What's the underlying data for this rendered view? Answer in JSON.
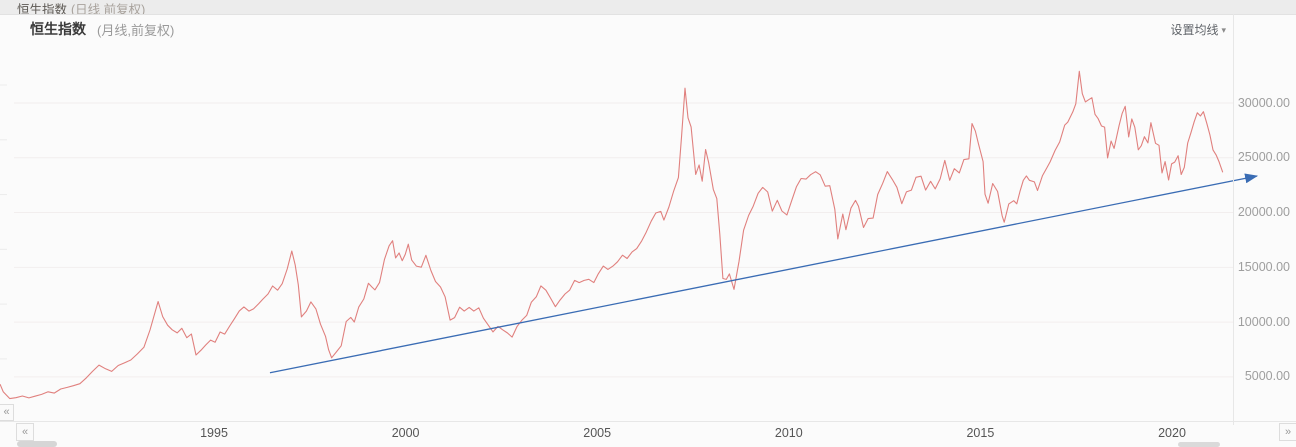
{
  "window": {
    "tab_title": "恒生指数",
    "tab_subtitle": "(日线 前复权)"
  },
  "header": {
    "title": "恒生指数",
    "subtitle": "(月线,前复权)",
    "ma_settings_label": "设置均线",
    "caret_icon": "▾"
  },
  "nav": {
    "collapse_icon": "«",
    "pan_left_icon": "«",
    "pan_right_icon": "»"
  },
  "colors": {
    "price_line": "#e0807e",
    "trend_line": "#3a6cb4",
    "grid": "#f2eeee",
    "minor_tick": "#ececec",
    "axis_text": "#9e9e9e"
  },
  "chart_data": {
    "type": "line",
    "title": "恒生指数 (月线,前复权)",
    "xlabel": "",
    "ylabel": "",
    "legend": "none",
    "grid": "horizontal-only",
    "x_unit": "year",
    "xlim": [
      1989.9,
      2022.8
    ],
    "ylim": [
      2300,
      33600
    ],
    "x_ticks": [
      1995,
      2000,
      2005,
      2010,
      2015,
      2020
    ],
    "x_tick_labels": [
      "1995",
      "2000",
      "2005",
      "2010",
      "2015",
      "2020"
    ],
    "y_ticks": [
      30000,
      25000,
      20000,
      15000,
      10000,
      5000
    ],
    "y_tick_labels": [
      "30000.00",
      "25000.00",
      "20000.00",
      "15000.00",
      "10000.00",
      "5000.00"
    ],
    "annotations": [
      {
        "type": "trendline-arrow",
        "from": {
          "x": 1996.96,
          "value": 5380
        },
        "to": {
          "x": 2022.72,
          "value": 23340
        }
      }
    ],
    "series": [
      {
        "name": "恒生指数",
        "points": [
          [
            1989.92,
            4300
          ],
          [
            1990.0,
            3650
          ],
          [
            1990.17,
            3020
          ],
          [
            1990.33,
            3100
          ],
          [
            1990.5,
            3260
          ],
          [
            1990.67,
            3080
          ],
          [
            1990.83,
            3240
          ],
          [
            1991.0,
            3400
          ],
          [
            1991.17,
            3640
          ],
          [
            1991.33,
            3520
          ],
          [
            1991.5,
            3900
          ],
          [
            1991.67,
            4040
          ],
          [
            1991.83,
            4200
          ],
          [
            1992.0,
            4380
          ],
          [
            1992.17,
            4920
          ],
          [
            1992.33,
            5500
          ],
          [
            1992.5,
            6080
          ],
          [
            1992.67,
            5740
          ],
          [
            1992.83,
            5500
          ],
          [
            1993.0,
            6040
          ],
          [
            1993.17,
            6300
          ],
          [
            1993.33,
            6540
          ],
          [
            1993.5,
            7100
          ],
          [
            1993.67,
            7700
          ],
          [
            1993.83,
            9280
          ],
          [
            1994.04,
            11880
          ],
          [
            1994.16,
            10500
          ],
          [
            1994.29,
            9720
          ],
          [
            1994.41,
            9300
          ],
          [
            1994.54,
            9020
          ],
          [
            1994.66,
            9440
          ],
          [
            1994.79,
            8580
          ],
          [
            1994.91,
            8920
          ],
          [
            1995.03,
            7000
          ],
          [
            1995.16,
            7440
          ],
          [
            1995.28,
            7900
          ],
          [
            1995.41,
            8360
          ],
          [
            1995.53,
            8160
          ],
          [
            1995.66,
            9100
          ],
          [
            1995.78,
            8910
          ],
          [
            1995.91,
            9650
          ],
          [
            1996.03,
            10290
          ],
          [
            1996.16,
            11020
          ],
          [
            1996.28,
            11390
          ],
          [
            1996.41,
            11010
          ],
          [
            1996.53,
            11210
          ],
          [
            1996.66,
            11660
          ],
          [
            1996.78,
            12110
          ],
          [
            1996.91,
            12570
          ],
          [
            1997.03,
            13300
          ],
          [
            1997.16,
            12910
          ],
          [
            1997.28,
            13510
          ],
          [
            1997.41,
            14850
          ],
          [
            1997.53,
            16490
          ],
          [
            1997.62,
            15210
          ],
          [
            1997.7,
            13410
          ],
          [
            1997.78,
            10480
          ],
          [
            1997.91,
            11010
          ],
          [
            1998.03,
            11850
          ],
          [
            1998.16,
            11210
          ],
          [
            1998.28,
            9810
          ],
          [
            1998.41,
            8710
          ],
          [
            1998.49,
            7480
          ],
          [
            1998.57,
            6740
          ],
          [
            1998.7,
            7310
          ],
          [
            1998.82,
            7840
          ],
          [
            1998.95,
            10060
          ],
          [
            1999.07,
            10430
          ],
          [
            1999.16,
            10010
          ],
          [
            1999.28,
            11390
          ],
          [
            1999.41,
            12110
          ],
          [
            1999.53,
            13540
          ],
          [
            1999.62,
            13210
          ],
          [
            1999.7,
            12940
          ],
          [
            1999.82,
            13610
          ],
          [
            1999.95,
            15730
          ],
          [
            2000.07,
            16970
          ],
          [
            2000.16,
            17430
          ],
          [
            2000.24,
            15860
          ],
          [
            2000.33,
            16310
          ],
          [
            2000.41,
            15610
          ],
          [
            2000.49,
            16170
          ],
          [
            2000.57,
            17110
          ],
          [
            2000.66,
            15660
          ],
          [
            2000.78,
            15110
          ],
          [
            2000.91,
            15010
          ],
          [
            2001.03,
            16100
          ],
          [
            2001.16,
            14710
          ],
          [
            2001.28,
            13710
          ],
          [
            2001.41,
            13210
          ],
          [
            2001.53,
            12310
          ],
          [
            2001.66,
            10180
          ],
          [
            2001.78,
            10410
          ],
          [
            2001.91,
            11360
          ],
          [
            2002.03,
            11010
          ],
          [
            2002.16,
            11340
          ],
          [
            2002.28,
            11010
          ],
          [
            2002.41,
            11310
          ],
          [
            2002.53,
            10360
          ],
          [
            2002.66,
            9710
          ],
          [
            2002.78,
            9110
          ],
          [
            2002.91,
            9610
          ],
          [
            2003.03,
            9310
          ],
          [
            2003.16,
            9010
          ],
          [
            2003.28,
            8630
          ],
          [
            2003.41,
            9610
          ],
          [
            2003.53,
            10160
          ],
          [
            2003.66,
            10610
          ],
          [
            2003.78,
            11810
          ],
          [
            2003.91,
            12310
          ],
          [
            2004.03,
            13310
          ],
          [
            2004.16,
            12910
          ],
          [
            2004.28,
            12210
          ],
          [
            2004.41,
            11410
          ],
          [
            2004.53,
            12010
          ],
          [
            2004.66,
            12570
          ],
          [
            2004.78,
            12910
          ],
          [
            2004.91,
            13810
          ],
          [
            2005.03,
            13610
          ],
          [
            2005.16,
            13810
          ],
          [
            2005.28,
            13910
          ],
          [
            2005.41,
            13610
          ],
          [
            2005.53,
            14410
          ],
          [
            2005.66,
            15110
          ],
          [
            2005.78,
            14810
          ],
          [
            2005.91,
            15110
          ],
          [
            2006.03,
            15510
          ],
          [
            2006.16,
            16110
          ],
          [
            2006.28,
            15810
          ],
          [
            2006.41,
            16410
          ],
          [
            2006.53,
            16710
          ],
          [
            2006.66,
            17410
          ],
          [
            2006.78,
            18210
          ],
          [
            2006.91,
            19210
          ],
          [
            2007.03,
            19960
          ],
          [
            2007.16,
            20110
          ],
          [
            2007.24,
            19310
          ],
          [
            2007.37,
            20510
          ],
          [
            2007.49,
            21910
          ],
          [
            2007.62,
            23190
          ],
          [
            2007.7,
            26880
          ],
          [
            2007.79,
            31350
          ],
          [
            2007.87,
            28650
          ],
          [
            2007.95,
            27820
          ],
          [
            2008.07,
            23470
          ],
          [
            2008.16,
            24340
          ],
          [
            2008.24,
            22860
          ],
          [
            2008.33,
            25760
          ],
          [
            2008.41,
            24540
          ],
          [
            2008.53,
            22110
          ],
          [
            2008.62,
            21270
          ],
          [
            2008.7,
            18030
          ],
          [
            2008.78,
            13980
          ],
          [
            2008.87,
            13900
          ],
          [
            2008.95,
            14400
          ],
          [
            2009.07,
            12990
          ],
          [
            2009.2,
            15530
          ],
          [
            2009.32,
            18390
          ],
          [
            2009.45,
            19730
          ],
          [
            2009.57,
            20580
          ],
          [
            2009.7,
            21760
          ],
          [
            2009.82,
            22300
          ],
          [
            2009.95,
            21880
          ],
          [
            2010.07,
            20130
          ],
          [
            2010.2,
            21120
          ],
          [
            2010.32,
            20140
          ],
          [
            2010.45,
            19780
          ],
          [
            2010.57,
            21040
          ],
          [
            2010.7,
            22370
          ],
          [
            2010.82,
            23110
          ],
          [
            2010.95,
            23050
          ],
          [
            2011.07,
            23460
          ],
          [
            2011.2,
            23730
          ],
          [
            2011.32,
            23450
          ],
          [
            2011.45,
            22410
          ],
          [
            2011.57,
            22450
          ],
          [
            2011.7,
            20310
          ],
          [
            2011.78,
            17600
          ],
          [
            2011.91,
            19870
          ],
          [
            2011.99,
            18440
          ],
          [
            2012.12,
            20400
          ],
          [
            2012.24,
            21110
          ],
          [
            2012.32,
            20570
          ],
          [
            2012.45,
            18640
          ],
          [
            2012.57,
            19450
          ],
          [
            2012.7,
            19490
          ],
          [
            2012.82,
            21650
          ],
          [
            2012.95,
            22670
          ],
          [
            2013.07,
            23740
          ],
          [
            2013.2,
            23030
          ],
          [
            2013.32,
            22310
          ],
          [
            2013.45,
            20810
          ],
          [
            2013.57,
            21890
          ],
          [
            2013.7,
            22050
          ],
          [
            2013.82,
            23220
          ],
          [
            2013.95,
            23320
          ],
          [
            2014.07,
            22050
          ],
          [
            2014.2,
            22850
          ],
          [
            2014.32,
            22160
          ],
          [
            2014.45,
            23090
          ],
          [
            2014.57,
            24760
          ],
          [
            2014.7,
            22940
          ],
          [
            2014.82,
            24000
          ],
          [
            2014.95,
            23620
          ],
          [
            2015.07,
            24830
          ],
          [
            2015.2,
            24910
          ],
          [
            2015.28,
            28130
          ],
          [
            2015.37,
            27430
          ],
          [
            2015.45,
            26260
          ],
          [
            2015.57,
            24650
          ],
          [
            2015.62,
            21680
          ],
          [
            2015.7,
            20850
          ],
          [
            2015.82,
            22650
          ],
          [
            2015.95,
            21920
          ],
          [
            2016.07,
            19690
          ],
          [
            2016.12,
            19120
          ],
          [
            2016.24,
            20790
          ],
          [
            2016.37,
            21080
          ],
          [
            2016.45,
            20800
          ],
          [
            2016.53,
            21900
          ],
          [
            2016.62,
            22940
          ],
          [
            2016.7,
            23350
          ],
          [
            2016.78,
            22940
          ],
          [
            2016.91,
            22800
          ],
          [
            2016.99,
            22010
          ],
          [
            2017.12,
            23370
          ],
          [
            2017.24,
            24120
          ],
          [
            2017.32,
            24620
          ],
          [
            2017.45,
            25670
          ],
          [
            2017.57,
            26450
          ],
          [
            2017.7,
            27980
          ],
          [
            2017.78,
            28260
          ],
          [
            2017.91,
            29190
          ],
          [
            2017.99,
            29930
          ],
          [
            2018.08,
            32890
          ],
          [
            2018.16,
            30850
          ],
          [
            2018.24,
            30100
          ],
          [
            2018.32,
            30290
          ],
          [
            2018.41,
            30480
          ],
          [
            2018.49,
            28970
          ],
          [
            2018.57,
            28590
          ],
          [
            2018.66,
            27900
          ],
          [
            2018.74,
            27800
          ],
          [
            2018.82,
            24990
          ],
          [
            2018.91,
            26520
          ],
          [
            2018.99,
            25860
          ],
          [
            2019.12,
            27950
          ],
          [
            2019.2,
            29060
          ],
          [
            2019.28,
            29700
          ],
          [
            2019.37,
            26910
          ],
          [
            2019.45,
            28550
          ],
          [
            2019.53,
            27790
          ],
          [
            2019.62,
            25730
          ],
          [
            2019.7,
            26100
          ],
          [
            2019.78,
            26920
          ],
          [
            2019.87,
            26360
          ],
          [
            2019.95,
            28200
          ],
          [
            2020.07,
            26320
          ],
          [
            2020.16,
            26140
          ],
          [
            2020.24,
            23610
          ],
          [
            2020.32,
            24650
          ],
          [
            2020.41,
            22970
          ],
          [
            2020.49,
            24440
          ],
          [
            2020.57,
            24610
          ],
          [
            2020.66,
            25190
          ],
          [
            2020.74,
            23470
          ],
          [
            2020.82,
            24120
          ],
          [
            2020.91,
            26350
          ],
          [
            2020.99,
            27240
          ],
          [
            2021.08,
            28290
          ],
          [
            2021.16,
            29110
          ],
          [
            2021.24,
            28810
          ],
          [
            2021.32,
            29210
          ],
          [
            2021.41,
            28110
          ],
          [
            2021.49,
            27090
          ],
          [
            2021.57,
            25720
          ],
          [
            2021.65,
            25260
          ],
          [
            2021.73,
            24620
          ],
          [
            2021.82,
            23710
          ]
        ]
      }
    ]
  }
}
